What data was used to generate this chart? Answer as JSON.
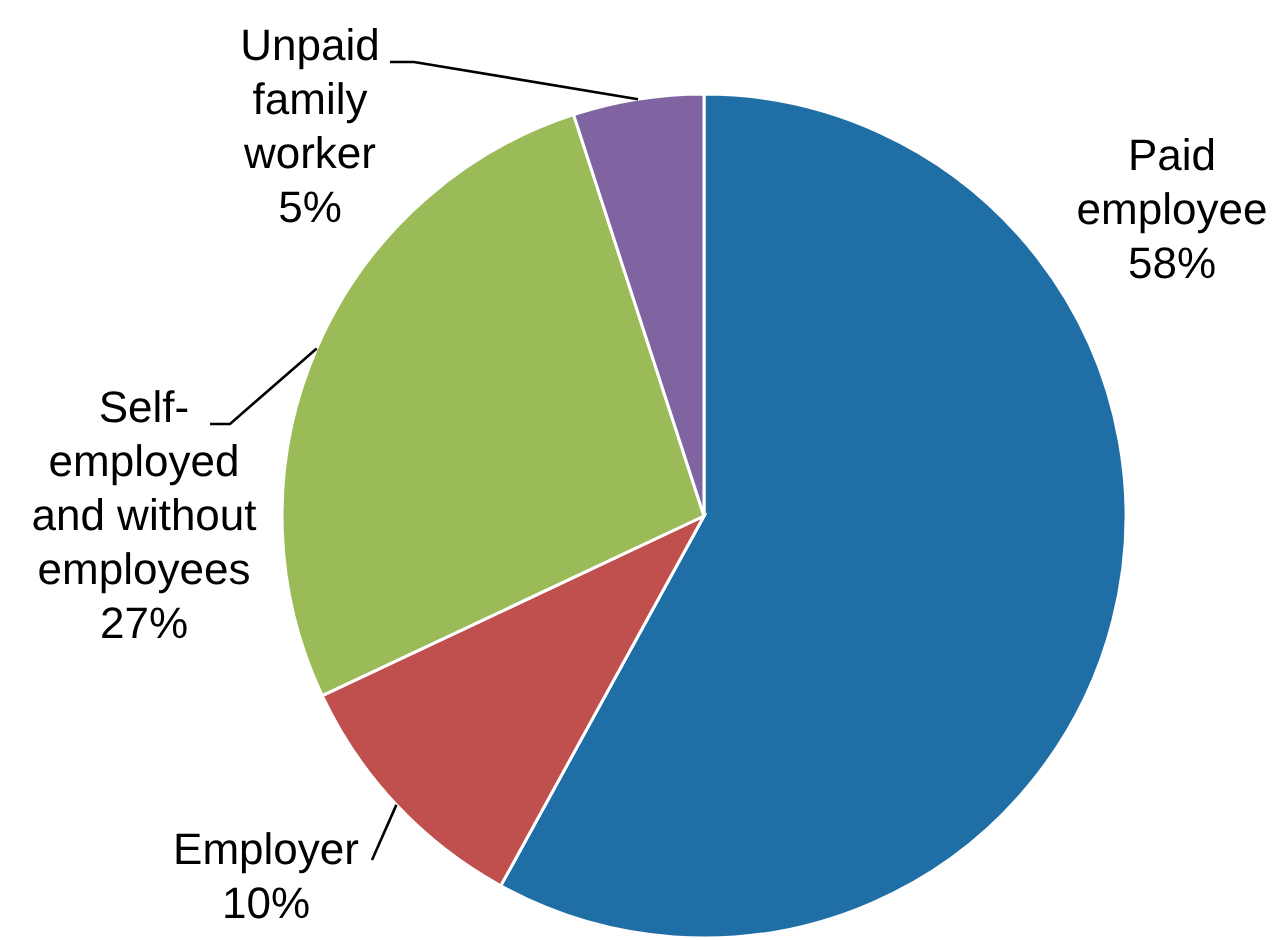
{
  "chart_data": {
    "type": "pie",
    "categories": [
      "Paid employee",
      "Employer",
      "Self-employed and without employees",
      "Unpaid family worker"
    ],
    "values": [
      58,
      10,
      27,
      5
    ],
    "colors": [
      "#1f6fa6",
      "#c0504d",
      "#9bbb59",
      "#8064a2"
    ],
    "value_labels": [
      "58%",
      "10%",
      "27%",
      "5%"
    ]
  }
}
